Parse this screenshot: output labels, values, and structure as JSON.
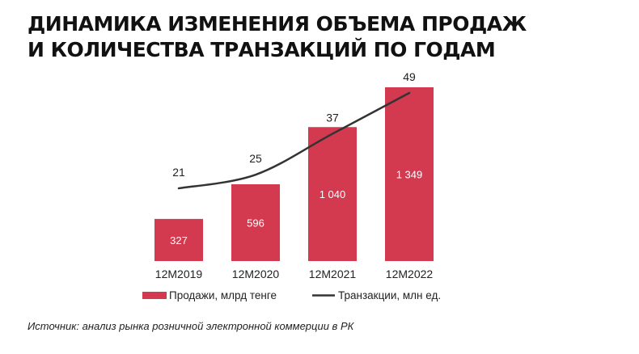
{
  "title": {
    "line1": "ДИНАМИКА ИЗМЕНЕНИЯ ОБЪЕМА ПРОДАЖ",
    "line2": "И КОЛИЧЕСТВА ТРАНЗАКЦИЙ ПО ГОДАМ"
  },
  "source": "Источник: анализ рынка розничной электронной коммерции в РК",
  "colors": {
    "bar": "#d3394f",
    "line": "#333333",
    "bar_label": "#ffffff",
    "text": "#222222"
  },
  "chart_data": {
    "type": "bar",
    "categories": [
      "12M2019",
      "12M2020",
      "12M2021",
      "12M2022"
    ],
    "series": [
      {
        "name": "Продажи, млрд тенге",
        "type": "bar",
        "values": [
          327,
          596,
          1040,
          1349
        ],
        "labels": [
          "327",
          "596",
          "1 040",
          "1 349"
        ]
      },
      {
        "name": "Транзакции, млн ед.",
        "type": "line",
        "values": [
          21,
          25,
          37,
          49
        ],
        "labels": [
          "21",
          "25",
          "37",
          "49"
        ]
      }
    ],
    "legend_position": "bottom",
    "grid": false
  }
}
